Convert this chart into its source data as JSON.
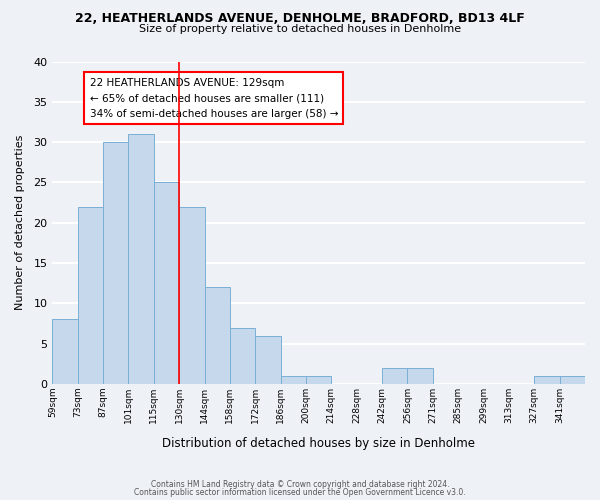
{
  "title": "22, HEATHERLANDS AVENUE, DENHOLME, BRADFORD, BD13 4LF",
  "subtitle": "Size of property relative to detached houses in Denholme",
  "xlabel": "Distribution of detached houses by size in Denholme",
  "ylabel": "Number of detached properties",
  "bar_color": "#c6d9ec",
  "bar_edge_color": "#7aafd4",
  "background_color": "#eef2f7",
  "grid_color": "white",
  "bin_labels": [
    "59sqm",
    "73sqm",
    "87sqm",
    "101sqm",
    "115sqm",
    "130sqm",
    "144sqm",
    "158sqm",
    "172sqm",
    "186sqm",
    "200sqm",
    "214sqm",
    "228sqm",
    "242sqm",
    "256sqm",
    "271sqm",
    "285sqm",
    "299sqm",
    "313sqm",
    "327sqm",
    "341sqm"
  ],
  "bar_heights": [
    8,
    22,
    30,
    31,
    25,
    22,
    12,
    7,
    6,
    1,
    1,
    0,
    0,
    2,
    2,
    0,
    0,
    0,
    0,
    1,
    1
  ],
  "ylim": [
    0,
    40
  ],
  "yticks": [
    0,
    5,
    10,
    15,
    20,
    25,
    30,
    35,
    40
  ],
  "property_line_x": 5,
  "annotation_title": "22 HEATHERLANDS AVENUE: 129sqm",
  "annotation_line1": "← 65% of detached houses are smaller (111)",
  "annotation_line2": "34% of semi-detached houses are larger (58) →",
  "footer_line1": "Contains HM Land Registry data © Crown copyright and database right 2024.",
  "footer_line2": "Contains public sector information licensed under the Open Government Licence v3.0."
}
